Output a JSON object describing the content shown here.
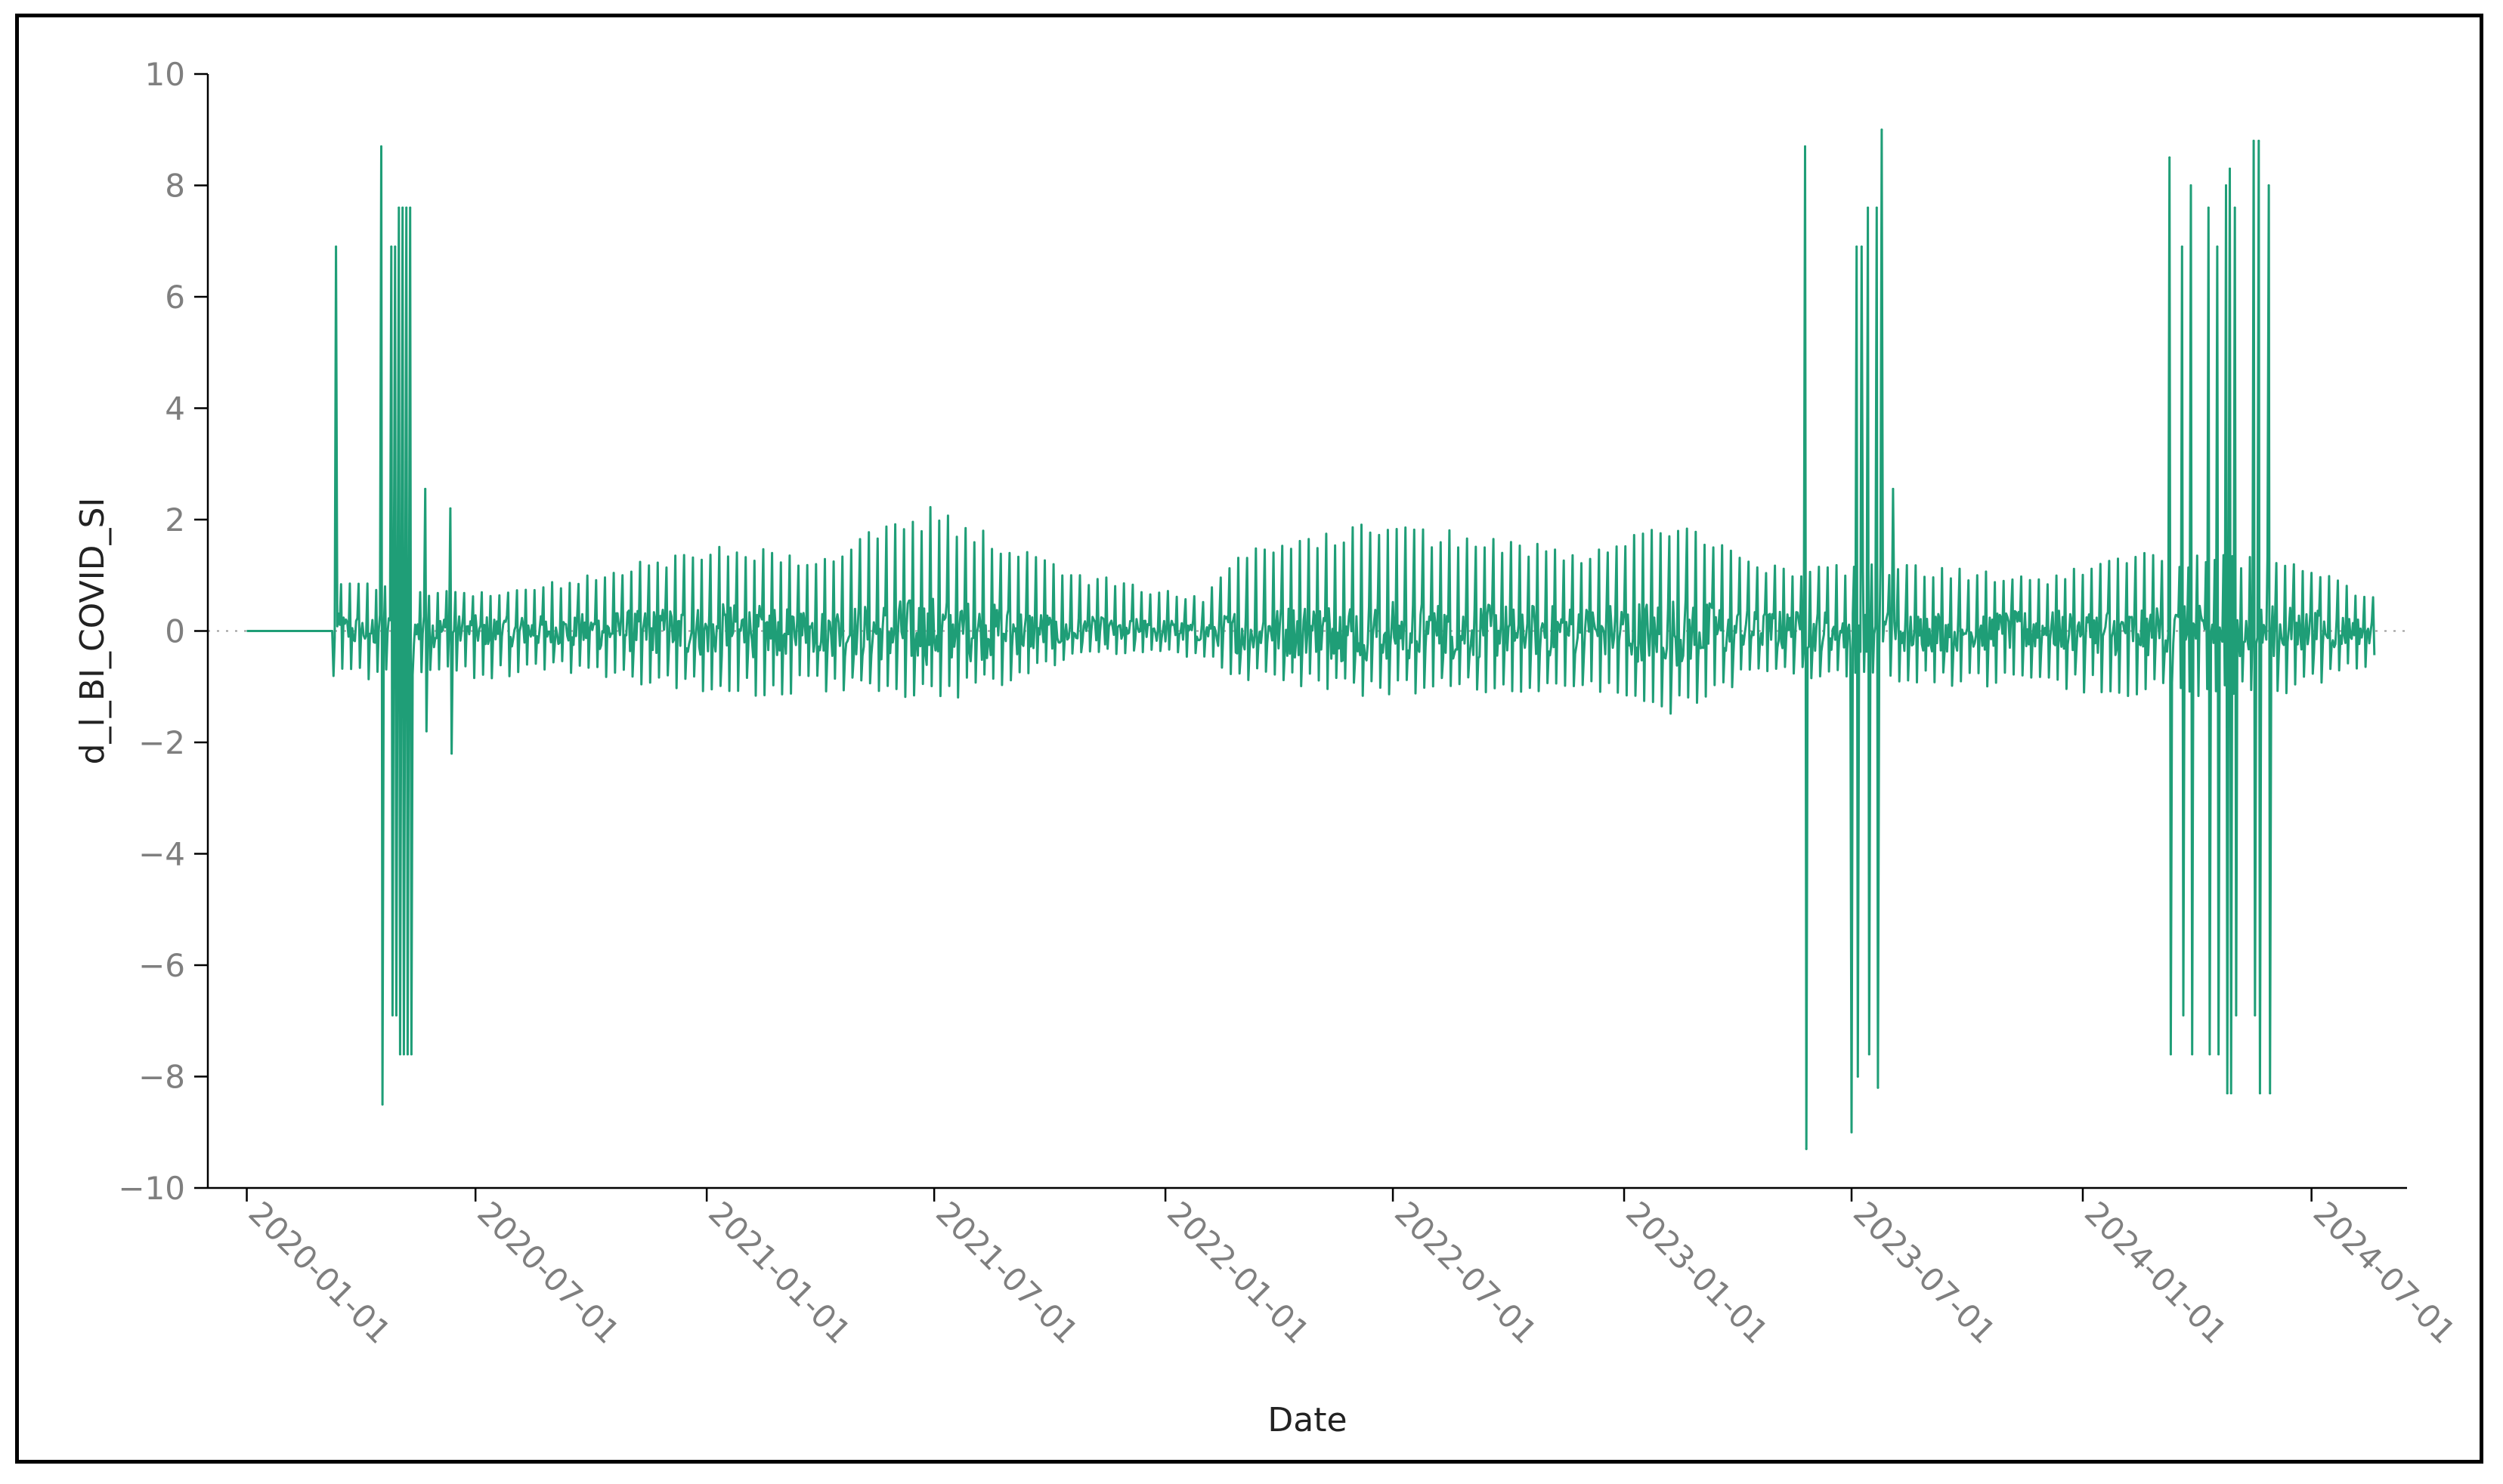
{
  "chart_data": {
    "type": "line",
    "title": "",
    "xlabel": "Date",
    "ylabel": "d_l_BI_COVID_SI",
    "x_ticks": [
      "2020-01-01",
      "2020-07-01",
      "2021-01-01",
      "2021-07-01",
      "2022-01-01",
      "2022-07-01",
      "2023-01-01",
      "2023-07-01",
      "2024-01-01",
      "2024-07-01"
    ],
    "y_ticks": [
      10,
      8,
      6,
      4,
      2,
      0,
      -2,
      -4,
      -6,
      -8,
      -10
    ],
    "y_tick_labels": [
      "10",
      "8",
      "6",
      "4",
      "2",
      "0",
      "−2",
      "−4",
      "−6",
      "−8",
      "−10"
    ],
    "ylim": [
      -10,
      10
    ],
    "xlim": [
      "2019-12-01",
      "2024-09-15"
    ],
    "grid": false,
    "zero_reference_line": "dotted",
    "line_color": "#1f9e77",
    "series": [
      {
        "x_start": "2020-01-01",
        "x_end": "2024-08-20",
        "frequency": "daily",
        "zero_until": "2020-03-10",
        "spikes": [
          {
            "date": "2020-03-12",
            "value": 6.9
          },
          {
            "date": "2020-04-17",
            "value": 8.7
          },
          {
            "date": "2020-04-18",
            "value": -8.5
          },
          {
            "date": "2020-04-25",
            "value": 6.9
          },
          {
            "date": "2020-04-26",
            "value": -6.9
          },
          {
            "date": "2020-04-28",
            "value": 6.9
          },
          {
            "date": "2020-04-29",
            "value": -6.9
          },
          {
            "date": "2020-05-01",
            "value": 7.6
          },
          {
            "date": "2020-05-02",
            "value": -7.6
          },
          {
            "date": "2020-05-04",
            "value": 7.6
          },
          {
            "date": "2020-05-05",
            "value": -7.6
          },
          {
            "date": "2020-05-07",
            "value": 7.6
          },
          {
            "date": "2020-05-08",
            "value": -7.6
          },
          {
            "date": "2020-05-10",
            "value": 7.6
          },
          {
            "date": "2020-05-11",
            "value": -7.6
          },
          {
            "date": "2020-05-22",
            "value": 2.55
          },
          {
            "date": "2020-05-23",
            "value": -1.8
          },
          {
            "date": "2020-06-11",
            "value": 2.2
          },
          {
            "date": "2020-06-12",
            "value": -2.2
          },
          {
            "date": "2023-05-25",
            "value": 8.7
          },
          {
            "date": "2023-05-26",
            "value": -9.3
          },
          {
            "date": "2023-07-01",
            "value": -9.0
          },
          {
            "date": "2023-07-05",
            "value": 6.9
          },
          {
            "date": "2023-07-06",
            "value": -8.0
          },
          {
            "date": "2023-07-09",
            "value": 6.9
          },
          {
            "date": "2023-07-14",
            "value": 7.6
          },
          {
            "date": "2023-07-15",
            "value": -7.6
          },
          {
            "date": "2023-07-21",
            "value": 7.6
          },
          {
            "date": "2023-07-22",
            "value": -8.2
          },
          {
            "date": "2023-07-25",
            "value": 9.0
          },
          {
            "date": "2023-08-03",
            "value": 2.55
          },
          {
            "date": "2024-03-10",
            "value": 8.5
          },
          {
            "date": "2024-03-11",
            "value": -7.6
          },
          {
            "date": "2024-03-20",
            "value": 6.9
          },
          {
            "date": "2024-03-21",
            "value": -6.9
          },
          {
            "date": "2024-03-27",
            "value": 8.0
          },
          {
            "date": "2024-03-28",
            "value": -7.6
          },
          {
            "date": "2024-04-10",
            "value": 7.6
          },
          {
            "date": "2024-04-11",
            "value": -7.6
          },
          {
            "date": "2024-04-17",
            "value": 6.9
          },
          {
            "date": "2024-04-18",
            "value": -7.6
          },
          {
            "date": "2024-04-24",
            "value": 8.0
          },
          {
            "date": "2024-04-25",
            "value": -8.3
          },
          {
            "date": "2024-04-27",
            "value": 8.3
          },
          {
            "date": "2024-04-28",
            "value": -8.3
          },
          {
            "date": "2024-05-01",
            "value": 7.6
          },
          {
            "date": "2024-05-02",
            "value": -6.9
          },
          {
            "date": "2024-05-16",
            "value": 8.8
          },
          {
            "date": "2024-05-17",
            "value": -6.9
          },
          {
            "date": "2024-05-20",
            "value": 8.8
          },
          {
            "date": "2024-05-21",
            "value": -8.3
          },
          {
            "date": "2024-05-28",
            "value": 8.0
          },
          {
            "date": "2024-05-29",
            "value": -8.3
          }
        ],
        "background_envelope": [
          {
            "date": "2020-03-15",
            "upper": 0.9,
            "lower": -0.9
          },
          {
            "date": "2020-07-15",
            "upper": 0.7,
            "lower": -0.9
          },
          {
            "date": "2020-09-01",
            "upper": 0.9,
            "lower": -0.7
          },
          {
            "date": "2020-11-01",
            "upper": 1.2,
            "lower": -1.0
          },
          {
            "date": "2021-01-15",
            "upper": 1.6,
            "lower": -1.2
          },
          {
            "date": "2021-04-01",
            "upper": 1.4,
            "lower": -1.1
          },
          {
            "date": "2021-07-01",
            "upper": 2.3,
            "lower": -1.3
          },
          {
            "date": "2021-09-01",
            "upper": 1.6,
            "lower": -1.0
          },
          {
            "date": "2021-10-15",
            "upper": 1.1,
            "lower": -0.5
          },
          {
            "date": "2021-12-01",
            "upper": 0.9,
            "lower": -0.4
          },
          {
            "date": "2022-02-01",
            "upper": 0.6,
            "lower": -0.5
          },
          {
            "date": "2022-03-01",
            "upper": 1.5,
            "lower": -0.9
          },
          {
            "date": "2022-06-01",
            "upper": 2.0,
            "lower": -1.2
          },
          {
            "date": "2022-09-01",
            "upper": 1.8,
            "lower": -1.1
          },
          {
            "date": "2022-12-01",
            "upper": 1.5,
            "lower": -1.1
          },
          {
            "date": "2023-02-15",
            "upper": 2.0,
            "lower": -1.6
          },
          {
            "date": "2023-04-15",
            "upper": 1.3,
            "lower": -0.8
          },
          {
            "date": "2023-05-20",
            "upper": 1.2,
            "lower": -0.9
          },
          {
            "date": "2023-09-01",
            "upper": 1.2,
            "lower": -1.0
          },
          {
            "date": "2023-12-01",
            "upper": 1.0,
            "lower": -1.0
          },
          {
            "date": "2024-02-01",
            "upper": 1.4,
            "lower": -1.2
          },
          {
            "date": "2024-06-15",
            "upper": 1.4,
            "lower": -1.2
          },
          {
            "date": "2024-08-20",
            "upper": 0.6,
            "lower": -0.6
          }
        ]
      }
    ]
  }
}
